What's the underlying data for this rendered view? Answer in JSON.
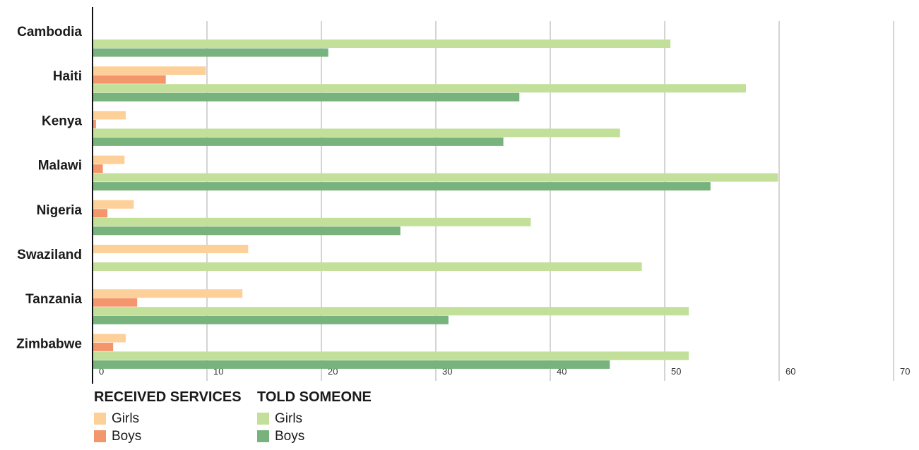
{
  "chart_data": {
    "type": "bar",
    "orientation": "horizontal",
    "categories": [
      "Cambodia",
      "Haiti",
      "Kenya",
      "Malawi",
      "Nigeria",
      "Swaziland",
      "Tanzania",
      "Zimbabwe"
    ],
    "series": [
      {
        "name": "Girls",
        "group": "RECEIVED SERVICES",
        "color": "#fdd09a",
        "values": [
          null,
          9.9,
          2.9,
          2.8,
          3.6,
          13.6,
          13.1,
          2.9
        ]
      },
      {
        "name": "Boys",
        "group": "RECEIVED SERVICES",
        "color": "#f4966c",
        "values": [
          null,
          6.4,
          0.3,
          0.9,
          1.3,
          null,
          3.9,
          1.8
        ]
      },
      {
        "name": "Girls",
        "group": "TOLD SOMEONE",
        "color": "#c3e09a",
        "values": [
          50.5,
          57.1,
          46.1,
          59.9,
          38.3,
          48.0,
          52.1,
          52.1
        ]
      },
      {
        "name": "Boys",
        "group": "TOLD SOMEONE",
        "color": "#78b27c",
        "values": [
          20.6,
          37.3,
          35.9,
          54.0,
          26.9,
          null,
          31.1,
          45.2
        ]
      }
    ],
    "x_ticks": [
      "0",
      "10",
      "20",
      "30",
      "40",
      "50",
      "60",
      "70"
    ],
    "xlim": [
      0,
      70
    ],
    "grid": true,
    "title": "",
    "xlabel": "",
    "ylabel": "",
    "legend": {
      "placement": "bottom-left",
      "groups": [
        {
          "title": "RECEIVED SERVICES",
          "items": [
            "Girls",
            "Boys"
          ]
        },
        {
          "title": "TOLD SOMEONE",
          "items": [
            "Girls",
            "Boys"
          ]
        }
      ]
    }
  }
}
